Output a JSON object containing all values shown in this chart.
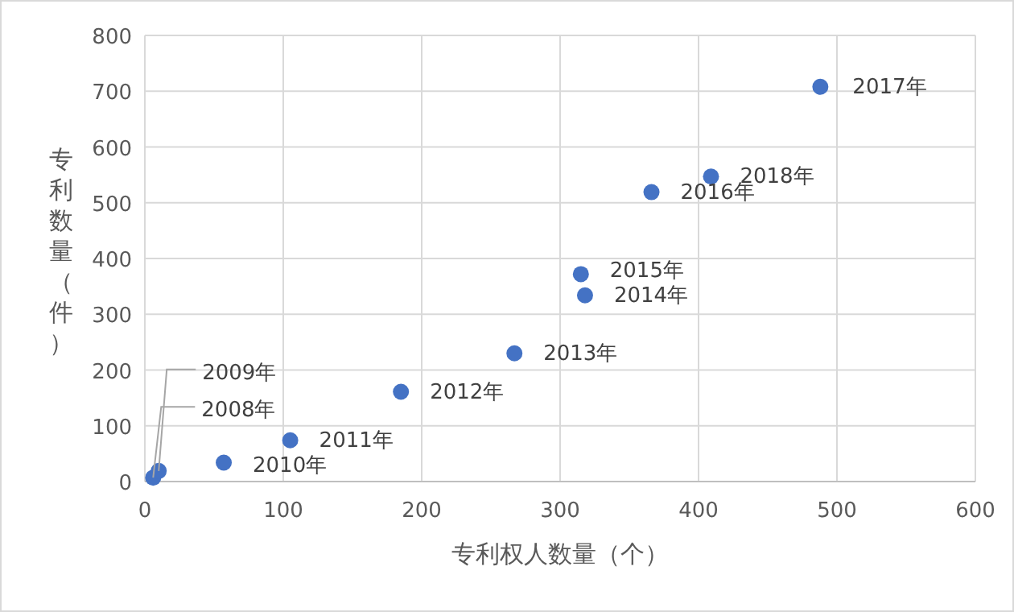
{
  "chart_data": {
    "type": "scatter",
    "xlabel": "专利权人数量（个）",
    "ylabel": "专利数量（件）",
    "x": [
      6,
      10,
      57,
      105,
      185,
      267,
      318,
      315,
      366,
      488,
      409
    ],
    "values": [
      7,
      19,
      34,
      74,
      161,
      230,
      334,
      372,
      519,
      708,
      547
    ],
    "annotations": [
      {
        "text": "2008年",
        "x": 6,
        "y": 7
      },
      {
        "text": "2009年",
        "x": 10,
        "y": 19
      },
      {
        "text": "2010年",
        "x": 57,
        "y": 34
      },
      {
        "text": "2011年",
        "x": 105,
        "y": 74
      },
      {
        "text": "2012年",
        "x": 185,
        "y": 161
      },
      {
        "text": "2013年",
        "x": 267,
        "y": 230
      },
      {
        "text": "2014年",
        "x": 318,
        "y": 334
      },
      {
        "text": "2015年",
        "x": 315,
        "y": 372
      },
      {
        "text": "2016年",
        "x": 366,
        "y": 519
      },
      {
        "text": "2017年",
        "x": 488,
        "y": 708
      },
      {
        "text": "2018年",
        "x": 409,
        "y": 547
      }
    ],
    "color": "#4472c4",
    "marker": "circle",
    "xlim": [
      0,
      600
    ],
    "xticks": [
      0,
      100,
      200,
      300,
      400,
      500,
      600
    ],
    "ylim": [
      0,
      800
    ],
    "yticks": [
      0,
      100,
      200,
      300,
      400,
      500,
      600,
      700,
      800
    ],
    "grid": true
  }
}
